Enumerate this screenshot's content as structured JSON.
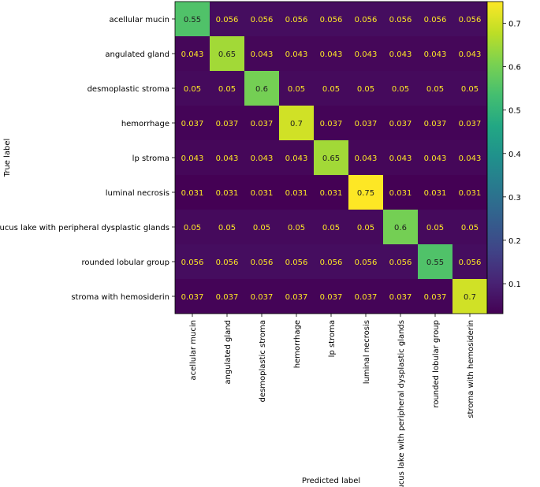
{
  "chart_data": {
    "type": "heatmap",
    "xlabel": "Predicted label",
    "ylabel": "True label",
    "labels": [
      "acellular mucin",
      "angulated gland",
      "desmoplastic stroma",
      "hemorrhage",
      "lp stroma",
      "luminal necrosis",
      "mucus lake with peripheral dysplastic glands",
      "rounded lobular group",
      "stroma with hemosiderin"
    ],
    "matrix": [
      [
        "0.55",
        "0.056",
        "0.056",
        "0.056",
        "0.056",
        "0.056",
        "0.056",
        "0.056",
        "0.056"
      ],
      [
        "0.043",
        "0.65",
        "0.043",
        "0.043",
        "0.043",
        "0.043",
        "0.043",
        "0.043",
        "0.043"
      ],
      [
        "0.05",
        "0.05",
        "0.6",
        "0.05",
        "0.05",
        "0.05",
        "0.05",
        "0.05",
        "0.05"
      ],
      [
        "0.037",
        "0.037",
        "0.037",
        "0.7",
        "0.037",
        "0.037",
        "0.037",
        "0.037",
        "0.037"
      ],
      [
        "0.043",
        "0.043",
        "0.043",
        "0.043",
        "0.65",
        "0.043",
        "0.043",
        "0.043",
        "0.043"
      ],
      [
        "0.031",
        "0.031",
        "0.031",
        "0.031",
        "0.031",
        "0.75",
        "0.031",
        "0.031",
        "0.031"
      ],
      [
        "0.05",
        "0.05",
        "0.05",
        "0.05",
        "0.05",
        "0.05",
        "0.6",
        "0.05",
        "0.05"
      ],
      [
        "0.056",
        "0.056",
        "0.056",
        "0.056",
        "0.056",
        "0.056",
        "0.056",
        "0.55",
        "0.056"
      ],
      [
        "0.037",
        "0.037",
        "0.037",
        "0.037",
        "0.037",
        "0.037",
        "0.037",
        "0.037",
        "0.7"
      ]
    ],
    "colorbar": {
      "colormap": "viridis",
      "range": [
        0.031,
        0.75
      ],
      "ticks": [
        "0.1",
        "0.2",
        "0.3",
        "0.4",
        "0.5",
        "0.6",
        "0.7"
      ]
    },
    "text_colors": {
      "on_dark": "#fde725",
      "on_light": "#1f1f1f"
    }
  }
}
